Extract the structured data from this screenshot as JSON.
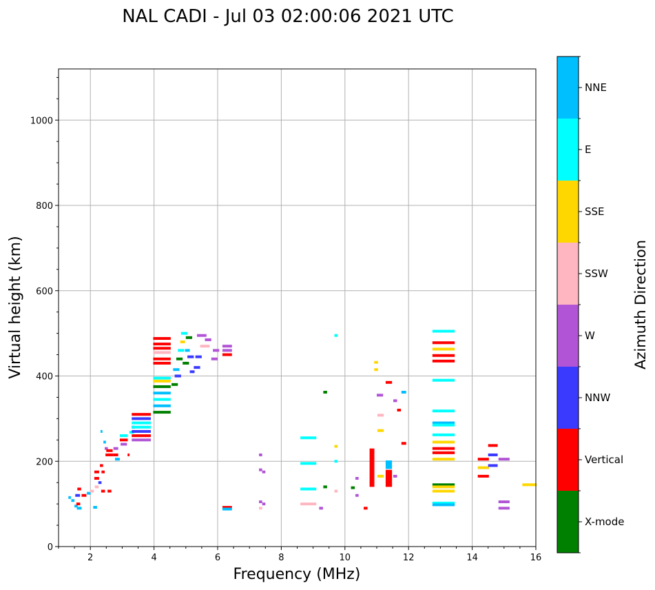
{
  "chart_data": {
    "type": "scatter",
    "title": "NAL CADI - Jul 03 02:00:06 2021 UTC",
    "xlabel": "Frequency (MHz)",
    "ylabel": "Virtual height (km)",
    "xlim": [
      1,
      16
    ],
    "ylim": [
      0,
      1120
    ],
    "xticks": [
      2,
      4,
      6,
      8,
      10,
      12,
      14,
      16
    ],
    "yticks": [
      0,
      200,
      400,
      600,
      800,
      1000
    ],
    "grid": true,
    "colorbar": {
      "label": "Azimuth Direction",
      "categories": [
        {
          "name": "X-mode",
          "color": "#008000"
        },
        {
          "name": "Vertical",
          "color": "#ff0000"
        },
        {
          "name": "NNW",
          "color": "#3a3aff"
        },
        {
          "name": "W",
          "color": "#b155d6"
        },
        {
          "name": "SSW",
          "color": "#ffb6c1"
        },
        {
          "name": "SSE",
          "color": "#ffd700"
        },
        {
          "name": "E",
          "color": "#00ffff"
        },
        {
          "name": "NNE",
          "color": "#00bfff"
        }
      ]
    },
    "points": [
      {
        "f": 1.35,
        "h": 115,
        "w": 0.08,
        "c": "NNE"
      },
      {
        "f": 1.45,
        "h": 108,
        "w": 0.1,
        "c": "NNE"
      },
      {
        "f": 1.55,
        "h": 95,
        "w": 0.1,
        "c": "NNE"
      },
      {
        "f": 1.6,
        "h": 120,
        "w": 0.15,
        "c": "NNW"
      },
      {
        "f": 1.62,
        "h": 100,
        "w": 0.12,
        "c": "Vertical"
      },
      {
        "f": 1.65,
        "h": 135,
        "w": 0.12,
        "c": "Vertical"
      },
      {
        "f": 1.65,
        "h": 90,
        "w": 0.15,
        "c": "NNE"
      },
      {
        "f": 1.8,
        "h": 120,
        "w": 0.15,
        "c": "Vertical"
      },
      {
        "f": 1.95,
        "h": 125,
        "w": 0.12,
        "c": "NNE"
      },
      {
        "f": 2.05,
        "h": 130,
        "w": 0.12,
        "c": "SSW"
      },
      {
        "f": 2.15,
        "h": 92,
        "w": 0.12,
        "c": "NNE"
      },
      {
        "f": 2.2,
        "h": 175,
        "w": 0.15,
        "c": "Vertical"
      },
      {
        "f": 2.2,
        "h": 160,
        "w": 0.15,
        "c": "Vertical"
      },
      {
        "f": 2.2,
        "h": 140,
        "w": 0.12,
        "c": "SSW"
      },
      {
        "f": 2.3,
        "h": 150,
        "w": 0.1,
        "c": "NNW"
      },
      {
        "f": 2.35,
        "h": 190,
        "w": 0.1,
        "c": "Vertical"
      },
      {
        "f": 2.4,
        "h": 175,
        "w": 0.1,
        "c": "Vertical"
      },
      {
        "f": 2.4,
        "h": 130,
        "w": 0.12,
        "c": "Vertical"
      },
      {
        "f": 2.35,
        "h": 270,
        "w": 0.06,
        "c": "NNE"
      },
      {
        "f": 2.45,
        "h": 245,
        "w": 0.08,
        "c": "NNE"
      },
      {
        "f": 2.5,
        "h": 230,
        "w": 0.1,
        "c": "W"
      },
      {
        "f": 2.55,
        "h": 215,
        "w": 0.15,
        "c": "Vertical"
      },
      {
        "f": 2.6,
        "h": 225,
        "w": 0.2,
        "c": "Vertical"
      },
      {
        "f": 2.65,
        "h": 215,
        "w": 0.15,
        "c": "Vertical"
      },
      {
        "f": 2.6,
        "h": 130,
        "w": 0.12,
        "c": "Vertical"
      },
      {
        "f": 2.8,
        "h": 230,
        "w": 0.15,
        "c": "W"
      },
      {
        "f": 2.8,
        "h": 215,
        "w": 0.15,
        "c": "Vertical"
      },
      {
        "f": 2.85,
        "h": 205,
        "w": 0.15,
        "c": "NNE"
      },
      {
        "f": 3.05,
        "h": 260,
        "w": 0.25,
        "c": "E"
      },
      {
        "f": 3.05,
        "h": 250,
        "w": 0.25,
        "c": "Vertical"
      },
      {
        "f": 3.05,
        "h": 240,
        "w": 0.2,
        "c": "W"
      },
      {
        "f": 3.2,
        "h": 215,
        "w": 0.06,
        "c": "Vertical"
      },
      {
        "f": 3.3,
        "h": 268,
        "w": 0.15,
        "c": "E"
      },
      {
        "f": 3.35,
        "h": 280,
        "w": 0.1,
        "c": "NNW"
      },
      {
        "f": 3.6,
        "h": 310,
        "w": 0.6,
        "c": "Vertical"
      },
      {
        "f": 3.6,
        "h": 300,
        "w": 0.6,
        "c": "NNW"
      },
      {
        "f": 3.6,
        "h": 290,
        "w": 0.6,
        "c": "E"
      },
      {
        "f": 3.6,
        "h": 280,
        "w": 0.6,
        "c": "E"
      },
      {
        "f": 3.6,
        "h": 270,
        "w": 0.6,
        "c": "NNW"
      },
      {
        "f": 3.6,
        "h": 260,
        "w": 0.6,
        "c": "Vertical"
      },
      {
        "f": 3.6,
        "h": 250,
        "w": 0.6,
        "c": "W"
      },
      {
        "f": 4.25,
        "h": 488,
        "w": 0.55,
        "c": "Vertical"
      },
      {
        "f": 4.25,
        "h": 475,
        "w": 0.55,
        "c": "Vertical"
      },
      {
        "f": 4.25,
        "h": 465,
        "w": 0.55,
        "c": "Vertical"
      },
      {
        "f": 4.25,
        "h": 455,
        "w": 0.55,
        "c": "SSW"
      },
      {
        "f": 4.25,
        "h": 440,
        "w": 0.55,
        "c": "Vertical"
      },
      {
        "f": 4.25,
        "h": 430,
        "w": 0.55,
        "c": "Vertical"
      },
      {
        "f": 4.25,
        "h": 395,
        "w": 0.55,
        "c": "E"
      },
      {
        "f": 4.25,
        "h": 388,
        "w": 0.55,
        "c": "SSE"
      },
      {
        "f": 4.25,
        "h": 375,
        "w": 0.55,
        "c": "X-mode"
      },
      {
        "f": 4.25,
        "h": 360,
        "w": 0.55,
        "c": "NNE"
      },
      {
        "f": 4.25,
        "h": 345,
        "w": 0.55,
        "c": "E"
      },
      {
        "f": 4.25,
        "h": 330,
        "w": 0.55,
        "c": "NNE"
      },
      {
        "f": 4.25,
        "h": 315,
        "w": 0.55,
        "c": "X-mode"
      },
      {
        "f": 4.65,
        "h": 380,
        "w": 0.2,
        "c": "X-mode"
      },
      {
        "f": 4.7,
        "h": 415,
        "w": 0.2,
        "c": "NNE"
      },
      {
        "f": 4.75,
        "h": 400,
        "w": 0.2,
        "c": "NNW"
      },
      {
        "f": 4.8,
        "h": 440,
        "w": 0.2,
        "c": "X-mode"
      },
      {
        "f": 4.85,
        "h": 460,
        "w": 0.2,
        "c": "E"
      },
      {
        "f": 4.9,
        "h": 480,
        "w": 0.15,
        "c": "SSE"
      },
      {
        "f": 4.95,
        "h": 500,
        "w": 0.2,
        "c": "E"
      },
      {
        "f": 5.0,
        "h": 430,
        "w": 0.2,
        "c": "X-mode"
      },
      {
        "f": 5.05,
        "h": 460,
        "w": 0.15,
        "c": "NNE"
      },
      {
        "f": 5.1,
        "h": 490,
        "w": 0.2,
        "c": "X-mode"
      },
      {
        "f": 5.15,
        "h": 445,
        "w": 0.2,
        "c": "NNW"
      },
      {
        "f": 5.2,
        "h": 410,
        "w": 0.15,
        "c": "NNW"
      },
      {
        "f": 5.35,
        "h": 420,
        "w": 0.2,
        "c": "NNW"
      },
      {
        "f": 5.4,
        "h": 445,
        "w": 0.2,
        "c": "NNW"
      },
      {
        "f": 5.5,
        "h": 495,
        "w": 0.3,
        "c": "W"
      },
      {
        "f": 5.6,
        "h": 470,
        "w": 0.3,
        "c": "SSW"
      },
      {
        "f": 5.7,
        "h": 485,
        "w": 0.2,
        "c": "W"
      },
      {
        "f": 5.9,
        "h": 440,
        "w": 0.2,
        "c": "W"
      },
      {
        "f": 5.95,
        "h": 460,
        "w": 0.2,
        "c": "W"
      },
      {
        "f": 6.3,
        "h": 470,
        "w": 0.3,
        "c": "W"
      },
      {
        "f": 6.3,
        "h": 460,
        "w": 0.3,
        "c": "W"
      },
      {
        "f": 6.3,
        "h": 450,
        "w": 0.3,
        "c": "Vertical"
      },
      {
        "f": 6.3,
        "h": 92,
        "w": 0.3,
        "c": "Vertical"
      },
      {
        "f": 6.3,
        "h": 88,
        "w": 0.3,
        "c": "NNE"
      },
      {
        "f": 7.35,
        "h": 215,
        "w": 0.1,
        "c": "W"
      },
      {
        "f": 7.35,
        "h": 180,
        "w": 0.1,
        "c": "W"
      },
      {
        "f": 7.45,
        "h": 175,
        "w": 0.1,
        "c": "W"
      },
      {
        "f": 7.35,
        "h": 105,
        "w": 0.1,
        "c": "W"
      },
      {
        "f": 7.45,
        "h": 100,
        "w": 0.1,
        "c": "W"
      },
      {
        "f": 7.35,
        "h": 90,
        "w": 0.1,
        "c": "SSW"
      },
      {
        "f": 8.85,
        "h": 255,
        "w": 0.5,
        "c": "E"
      },
      {
        "f": 8.85,
        "h": 195,
        "w": 0.5,
        "c": "E"
      },
      {
        "f": 8.85,
        "h": 135,
        "w": 0.5,
        "c": "E"
      },
      {
        "f": 8.85,
        "h": 100,
        "w": 0.5,
        "c": "SSW"
      },
      {
        "f": 9.25,
        "h": 90,
        "w": 0.12,
        "c": "W"
      },
      {
        "f": 9.38,
        "h": 362,
        "w": 0.12,
        "c": "X-mode"
      },
      {
        "f": 9.38,
        "h": 140,
        "w": 0.12,
        "c": "X-mode"
      },
      {
        "f": 9.72,
        "h": 495,
        "w": 0.1,
        "c": "E"
      },
      {
        "f": 9.72,
        "h": 235,
        "w": 0.1,
        "c": "SSE"
      },
      {
        "f": 9.72,
        "h": 200,
        "w": 0.1,
        "c": "E"
      },
      {
        "f": 9.72,
        "h": 130,
        "w": 0.1,
        "c": "SSW"
      },
      {
        "f": 10.25,
        "h": 138,
        "w": 0.12,
        "c": "X-mode"
      },
      {
        "f": 10.38,
        "h": 160,
        "w": 0.1,
        "c": "W"
      },
      {
        "f": 10.38,
        "h": 120,
        "w": 0.1,
        "c": "W"
      },
      {
        "f": 10.65,
        "h": 90,
        "w": 0.12,
        "c": "Vertical"
      },
      {
        "f": 10.85,
        "h": 185,
        "w": 0.15,
        "c": "Vertical",
        "dh": 90
      },
      {
        "f": 10.98,
        "h": 432,
        "w": 0.12,
        "c": "SSE"
      },
      {
        "f": 10.98,
        "h": 415,
        "w": 0.12,
        "c": "SSE"
      },
      {
        "f": 11.1,
        "h": 355,
        "w": 0.2,
        "c": "W"
      },
      {
        "f": 11.12,
        "h": 308,
        "w": 0.2,
        "c": "SSW"
      },
      {
        "f": 11.12,
        "h": 272,
        "w": 0.2,
        "c": "SSE"
      },
      {
        "f": 11.12,
        "h": 165,
        "w": 0.2,
        "c": "SSE"
      },
      {
        "f": 11.38,
        "h": 385,
        "w": 0.2,
        "c": "Vertical"
      },
      {
        "f": 11.38,
        "h": 192,
        "w": 0.2,
        "c": "NNE",
        "dh": 20
      },
      {
        "f": 11.38,
        "h": 160,
        "w": 0.2,
        "c": "Vertical",
        "dh": 40
      },
      {
        "f": 11.58,
        "h": 342,
        "w": 0.12,
        "c": "W"
      },
      {
        "f": 11.58,
        "h": 165,
        "w": 0.12,
        "c": "W"
      },
      {
        "f": 11.7,
        "h": 320,
        "w": 0.12,
        "c": "Vertical"
      },
      {
        "f": 11.85,
        "h": 362,
        "w": 0.15,
        "c": "NNE"
      },
      {
        "f": 11.85,
        "h": 242,
        "w": 0.15,
        "c": "Vertical"
      },
      {
        "f": 13.1,
        "h": 505,
        "w": 0.7,
        "c": "E"
      },
      {
        "f": 13.1,
        "h": 478,
        "w": 0.7,
        "c": "Vertical"
      },
      {
        "f": 13.1,
        "h": 463,
        "w": 0.7,
        "c": "SSE"
      },
      {
        "f": 13.1,
        "h": 448,
        "w": 0.7,
        "c": "Vertical"
      },
      {
        "f": 13.1,
        "h": 435,
        "w": 0.7,
        "c": "Vertical"
      },
      {
        "f": 13.1,
        "h": 390,
        "w": 0.7,
        "c": "E"
      },
      {
        "f": 13.1,
        "h": 318,
        "w": 0.7,
        "c": "E"
      },
      {
        "f": 13.1,
        "h": 290,
        "w": 0.7,
        "c": "NNE"
      },
      {
        "f": 13.1,
        "h": 285,
        "w": 0.7,
        "c": "E"
      },
      {
        "f": 13.1,
        "h": 262,
        "w": 0.7,
        "c": "E"
      },
      {
        "f": 13.1,
        "h": 245,
        "w": 0.7,
        "c": "SSE"
      },
      {
        "f": 13.1,
        "h": 230,
        "w": 0.7,
        "c": "Vertical"
      },
      {
        "f": 13.1,
        "h": 220,
        "w": 0.7,
        "c": "Vertical"
      },
      {
        "f": 13.1,
        "h": 205,
        "w": 0.7,
        "c": "SSE"
      },
      {
        "f": 13.1,
        "h": 145,
        "w": 0.7,
        "c": "X-mode"
      },
      {
        "f": 13.1,
        "h": 140,
        "w": 0.7,
        "c": "SSE"
      },
      {
        "f": 13.1,
        "h": 130,
        "w": 0.7,
        "c": "SSE"
      },
      {
        "f": 13.1,
        "h": 102,
        "w": 0.7,
        "c": "E"
      },
      {
        "f": 13.1,
        "h": 98,
        "w": 0.7,
        "c": "NNE"
      },
      {
        "f": 14.35,
        "h": 205,
        "w": 0.35,
        "c": "Vertical"
      },
      {
        "f": 14.35,
        "h": 185,
        "w": 0.35,
        "c": "SSE"
      },
      {
        "f": 14.35,
        "h": 165,
        "w": 0.35,
        "c": "Vertical"
      },
      {
        "f": 14.65,
        "h": 237,
        "w": 0.3,
        "c": "Vertical"
      },
      {
        "f": 14.65,
        "h": 215,
        "w": 0.3,
        "c": "NNW"
      },
      {
        "f": 14.65,
        "h": 190,
        "w": 0.3,
        "c": "NNW"
      },
      {
        "f": 15.0,
        "h": 205,
        "w": 0.35,
        "c": "W"
      },
      {
        "f": 15.0,
        "h": 105,
        "w": 0.35,
        "c": "W"
      },
      {
        "f": 15.0,
        "h": 90,
        "w": 0.35,
        "c": "W"
      },
      {
        "f": 15.8,
        "h": 145,
        "w": 0.45,
        "c": "SSE"
      }
    ]
  }
}
